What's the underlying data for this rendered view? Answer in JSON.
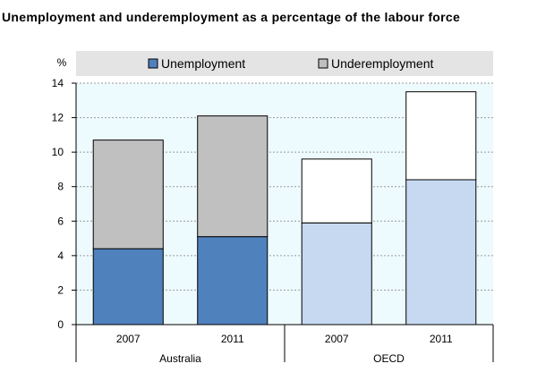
{
  "title": "Unemployment and underemployment as a percentage of the labour force",
  "chart_data": {
    "type": "bar",
    "stacked": true,
    "title": "Unemployment and underemployment as a percentage of the labour force",
    "ylabel": "%",
    "ylim": [
      0,
      14
    ],
    "yticks": [
      0,
      2,
      4,
      6,
      8,
      10,
      12,
      14
    ],
    "grid": true,
    "legend_position": "top",
    "groups": [
      "Australia",
      "OECD"
    ],
    "categories": [
      "2007",
      "2011",
      "2007",
      "2011"
    ],
    "category_groups": [
      "Australia",
      "Australia",
      "OECD",
      "OECD"
    ],
    "series": [
      {
        "name": "Unemployment",
        "values": [
          4.4,
          5.1,
          5.9,
          8.4
        ]
      },
      {
        "name": "Underemployment",
        "values": [
          6.3,
          7.0,
          3.7,
          5.1
        ]
      }
    ],
    "colors": {
      "australia_unemployment": "#4f81bd",
      "australia_underemployment": "#c0c0c0",
      "oecd_unemployment": "#c6d9f1",
      "oecd_underemployment": "#ffffff",
      "plot_background": "#eefbfe",
      "legend_background": "#e4e4e4"
    }
  }
}
